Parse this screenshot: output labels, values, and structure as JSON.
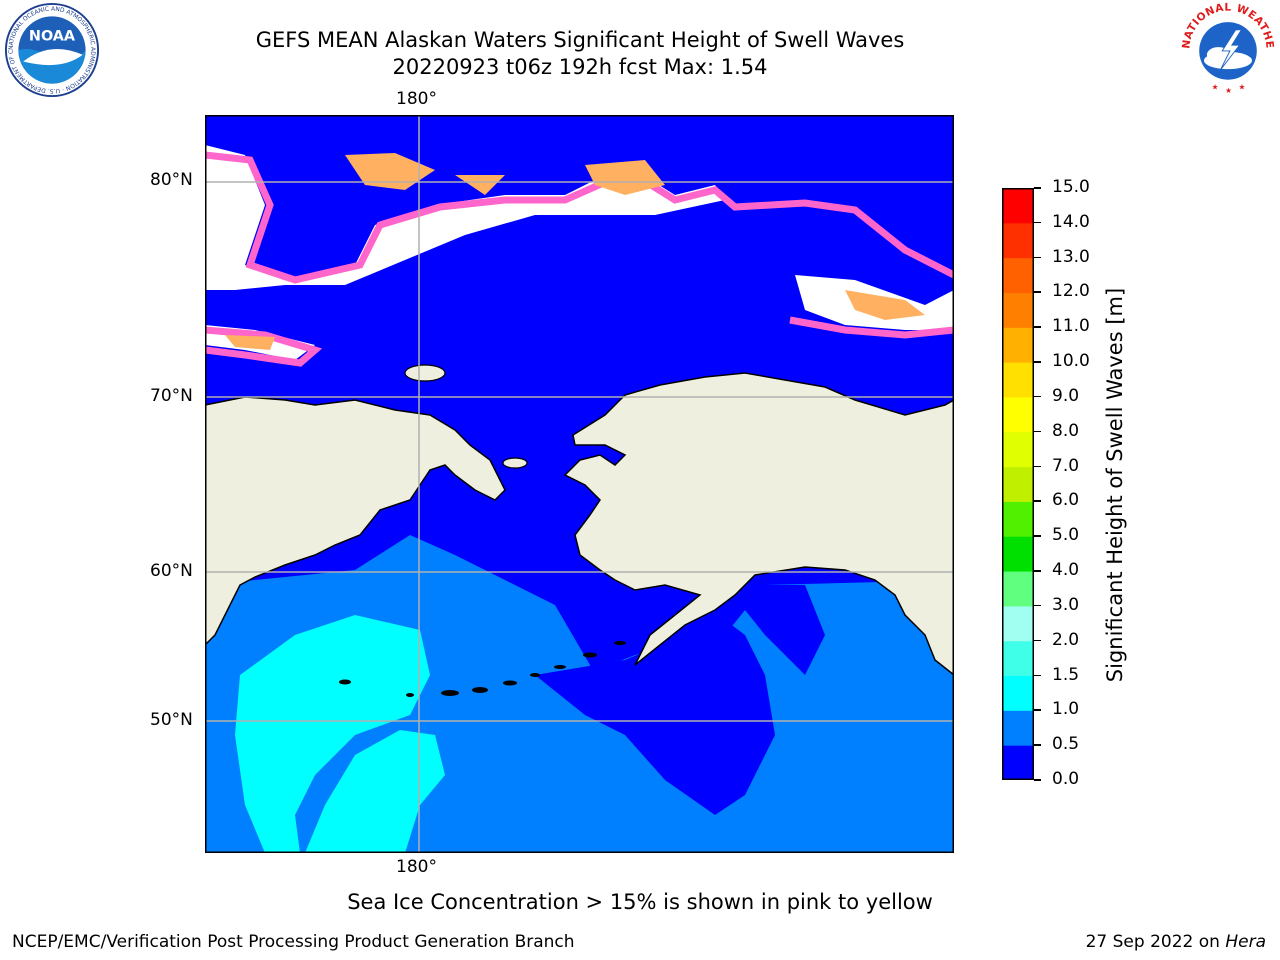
{
  "title": {
    "line1": "GEFS MEAN Alaskan Waters Significant Height of Swell Waves",
    "line2": "20220923 t06z 192h fcst   Max: 1.54"
  },
  "map": {
    "lon_label": "180°",
    "lat_labels": [
      "80°N",
      "70°N",
      "60°N",
      "50°N"
    ],
    "colors": {
      "land": "#efefdf",
      "ocean_low": "#0000ff",
      "ocean_mid": "#0080ff",
      "ocean_high": "#00ffff",
      "ice_white": "#ffffff",
      "ice_pink": "#ff66cc",
      "ice_orange": "#ffb060",
      "grid": "#b0b0b0"
    }
  },
  "colorbar": {
    "label": "Significant Height of Swell Waves [m]",
    "ticks": [
      "0.0",
      "0.5",
      "1.0",
      "1.5",
      "2.0",
      "3.0",
      "4.0",
      "5.0",
      "6.0",
      "7.0",
      "8.0",
      "9.0",
      "10.0",
      "11.0",
      "12.0",
      "13.0",
      "14.0",
      "15.0"
    ],
    "colors": [
      "#0000ff",
      "#0080ff",
      "#00ffff",
      "#40ffe8",
      "#a0fff0",
      "#60ff80",
      "#00e000",
      "#50f000",
      "#c0f000",
      "#e0ff00",
      "#ffff00",
      "#ffe000",
      "#ffb000",
      "#ff8000",
      "#ff6000",
      "#ff3000",
      "#ff0000"
    ]
  },
  "caption": "Sea Ice Concentration > 15% is shown in pink to yellow",
  "footer": {
    "left": "NCEP/EMC/Verification Post Processing Product Generation Branch",
    "date": "27 Sep 2022 on ",
    "machine": "Hera"
  },
  "logos": {
    "noaa": "NOAA",
    "nws": "NATIONAL WEATHER SERVICE",
    "noaa_ring": "NATIONAL OCEANIC AND ATMOSPHERIC ADMINISTRATION · U.S. DEPARTMENT OF COMMERCE ·"
  }
}
